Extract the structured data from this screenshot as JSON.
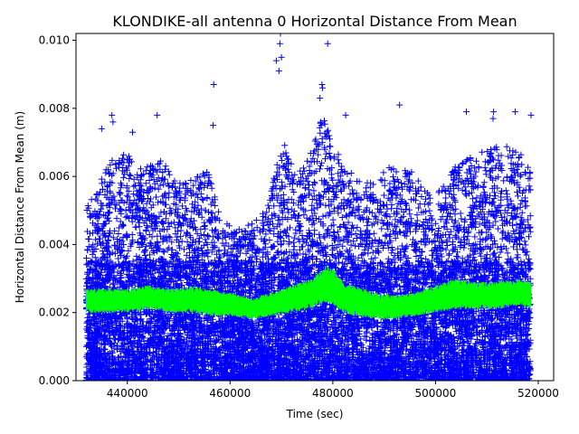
{
  "chart_data": {
    "type": "scatter",
    "title": "KLONDIKE-all antenna 0 Horizontal Distance From Mean",
    "xlabel": "Time (sec)",
    "ylabel": "Horizontal Distance From Mean (m)",
    "xlim": [
      430000,
      523000
    ],
    "ylim": [
      0.0,
      0.0102
    ],
    "x_ticks": [
      440000,
      460000,
      480000,
      500000,
      520000
    ],
    "x_tick_labels": [
      "440000",
      "460000",
      "480000",
      "500000",
      "520000"
    ],
    "y_ticks": [
      0.0,
      0.002,
      0.004,
      0.006,
      0.008,
      0.01
    ],
    "y_tick_labels": [
      "0.000",
      "0.002",
      "0.004",
      "0.006",
      "0.008",
      "0.010"
    ],
    "grid": false,
    "series": [
      {
        "marker": "+",
        "color": "#0000ff",
        "x_range": [
          432000,
          518500
        ],
        "envelope": {
          "x": [
            432000,
            434000,
            437000,
            440000,
            443000,
            446000,
            450000,
            453000,
            456000,
            458000,
            461000,
            464000,
            467000,
            470000,
            473000,
            476000,
            478000,
            480000,
            483000,
            486000,
            489000,
            492000,
            495000,
            498000,
            501000,
            504000,
            507000,
            510000,
            513000,
            516000,
            518500
          ],
          "y": [
            0.0052,
            0.0056,
            0.0066,
            0.0068,
            0.0062,
            0.0066,
            0.0058,
            0.006,
            0.0062,
            0.0048,
            0.0044,
            0.0046,
            0.005,
            0.0072,
            0.006,
            0.0068,
            0.0078,
            0.007,
            0.0062,
            0.0058,
            0.006,
            0.0064,
            0.0062,
            0.0056,
            0.0056,
            0.0064,
            0.0066,
            0.0068,
            0.007,
            0.0068,
            0.0062
          ]
        },
        "outliers": [
          {
            "x": 437000,
            "y": 0.0078
          },
          {
            "x": 437200,
            "y": 0.0076
          },
          {
            "x": 435000,
            "y": 0.0074
          },
          {
            "x": 441000,
            "y": 0.0073
          },
          {
            "x": 445800,
            "y": 0.0078
          },
          {
            "x": 456800,
            "y": 0.0087
          },
          {
            "x": 456700,
            "y": 0.0075
          },
          {
            "x": 469000,
            "y": 0.0094
          },
          {
            "x": 469500,
            "y": 0.0091
          },
          {
            "x": 469700,
            "y": 0.0099
          },
          {
            "x": 469800,
            "y": 0.0102
          },
          {
            "x": 470000,
            "y": 0.0095
          },
          {
            "x": 477900,
            "y": 0.0087
          },
          {
            "x": 478000,
            "y": 0.0086
          },
          {
            "x": 477500,
            "y": 0.0083
          },
          {
            "x": 479000,
            "y": 0.0099
          },
          {
            "x": 482500,
            "y": 0.0078
          },
          {
            "x": 493000,
            "y": 0.0081
          },
          {
            "x": 506000,
            "y": 0.0079
          },
          {
            "x": 511300,
            "y": 0.0079
          },
          {
            "x": 511200,
            "y": 0.0077
          },
          {
            "x": 515500,
            "y": 0.0079
          },
          {
            "x": 518600,
            "y": 0.0078
          }
        ]
      },
      {
        "marker": "line",
        "color": "#00ff00",
        "x": [
          432000,
          436000,
          440000,
          444000,
          448000,
          452000,
          456000,
          460000,
          464000,
          468000,
          472000,
          476000,
          478500,
          480000,
          482000,
          484000,
          488000,
          492000,
          496000,
          500000,
          504000,
          508000,
          512000,
          516000,
          518500
        ],
        "y_low": [
          0.002,
          0.002,
          0.002,
          0.0021,
          0.002,
          0.002,
          0.0019,
          0.0019,
          0.0018,
          0.0019,
          0.002,
          0.0021,
          0.0023,
          0.0022,
          0.002,
          0.0019,
          0.0018,
          0.0018,
          0.0019,
          0.002,
          0.0021,
          0.0021,
          0.0021,
          0.0022,
          0.0021
        ],
        "y_high": [
          0.0027,
          0.0027,
          0.0027,
          0.0028,
          0.0027,
          0.0028,
          0.0027,
          0.0026,
          0.0024,
          0.0026,
          0.0028,
          0.003,
          0.0034,
          0.0033,
          0.0029,
          0.0028,
          0.0026,
          0.0025,
          0.0026,
          0.0028,
          0.003,
          0.0029,
          0.0029,
          0.003,
          0.0029
        ]
      }
    ]
  }
}
